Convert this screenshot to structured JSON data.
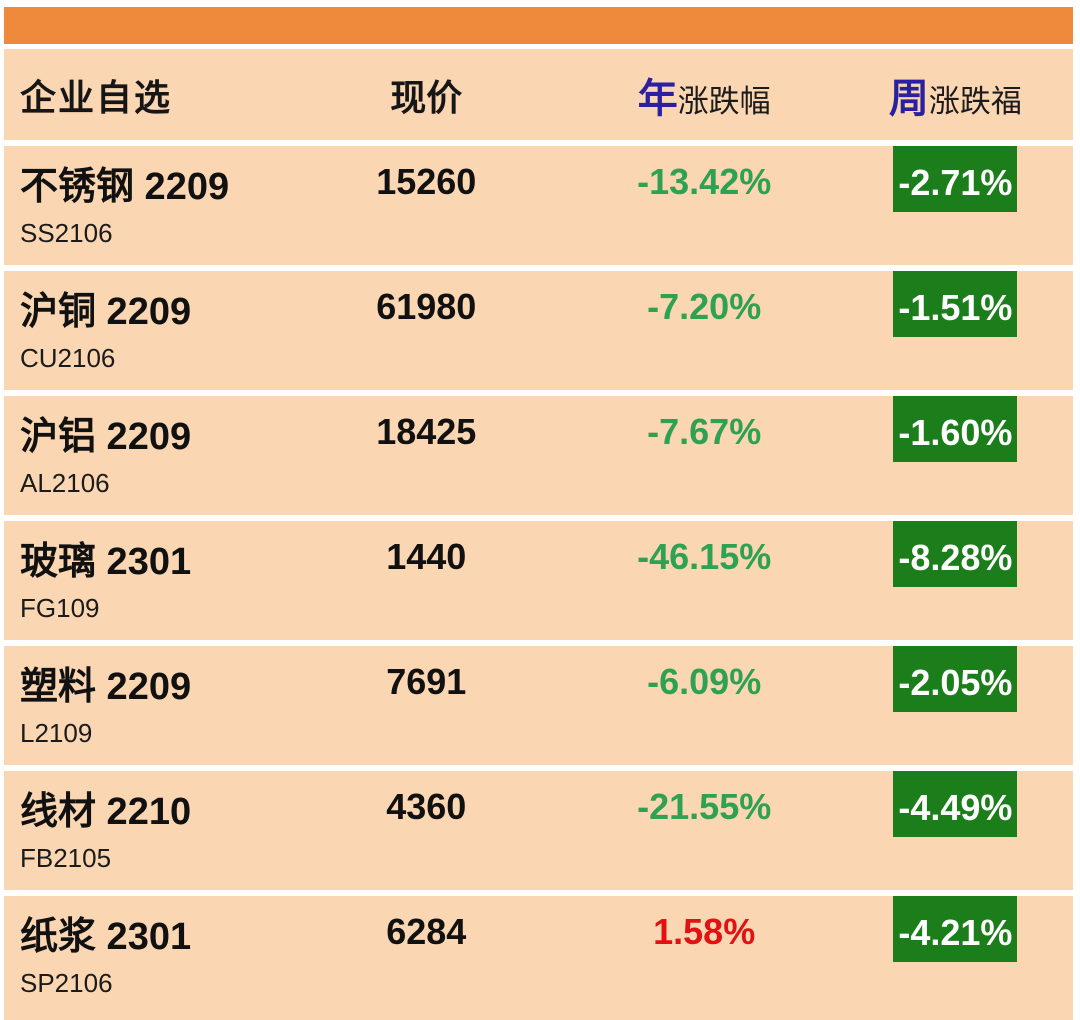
{
  "table": {
    "header": {
      "col_watchlist": "企业自选",
      "col_price": "现价",
      "col_year_prefix": "年",
      "col_year_rest": "涨跌幅",
      "col_week_prefix": "周",
      "col_week_rest": "涨跌福"
    },
    "rows": [
      {
        "name": "不锈钢 2209",
        "code": "SS2106",
        "price": "15260",
        "year_change": "-13.42%",
        "year_direction": "down",
        "week_change": "-2.71%"
      },
      {
        "name": "沪铜 2209",
        "code": "CU2106",
        "price": "61980",
        "year_change": "-7.20%",
        "year_direction": "down",
        "week_change": "-1.51%"
      },
      {
        "name": "沪铝 2209",
        "code": "AL2106",
        "price": "18425",
        "year_change": "-7.67%",
        "year_direction": "down",
        "week_change": "-1.60%"
      },
      {
        "name": "玻璃 2301",
        "code": "FG109",
        "price": "1440",
        "year_change": "-46.15%",
        "year_direction": "down",
        "week_change": "-8.28%"
      },
      {
        "name": "塑料 2209",
        "code": "L2109",
        "price": "7691",
        "year_change": "-6.09%",
        "year_direction": "down",
        "week_change": "-2.05%"
      },
      {
        "name": "线材 2210",
        "code": "FB2105",
        "price": "4360",
        "year_change": "-21.55%",
        "year_direction": "down",
        "week_change": "-4.49%"
      },
      {
        "name": "纸浆 2301",
        "code": "SP2106",
        "price": "6284",
        "year_change": "1.58%",
        "year_direction": "up",
        "week_change": "-4.21%"
      }
    ]
  },
  "colors": {
    "top_bar": "#ef8a3c",
    "row_bg": "#fad6b2",
    "separator": "#ffffff",
    "header_accent": "#2b21a0",
    "up_red": "#e01212",
    "down_green": "#2ea152",
    "week_badge_bg": "#1b7e1b",
    "week_badge_text": "#ffffff"
  }
}
